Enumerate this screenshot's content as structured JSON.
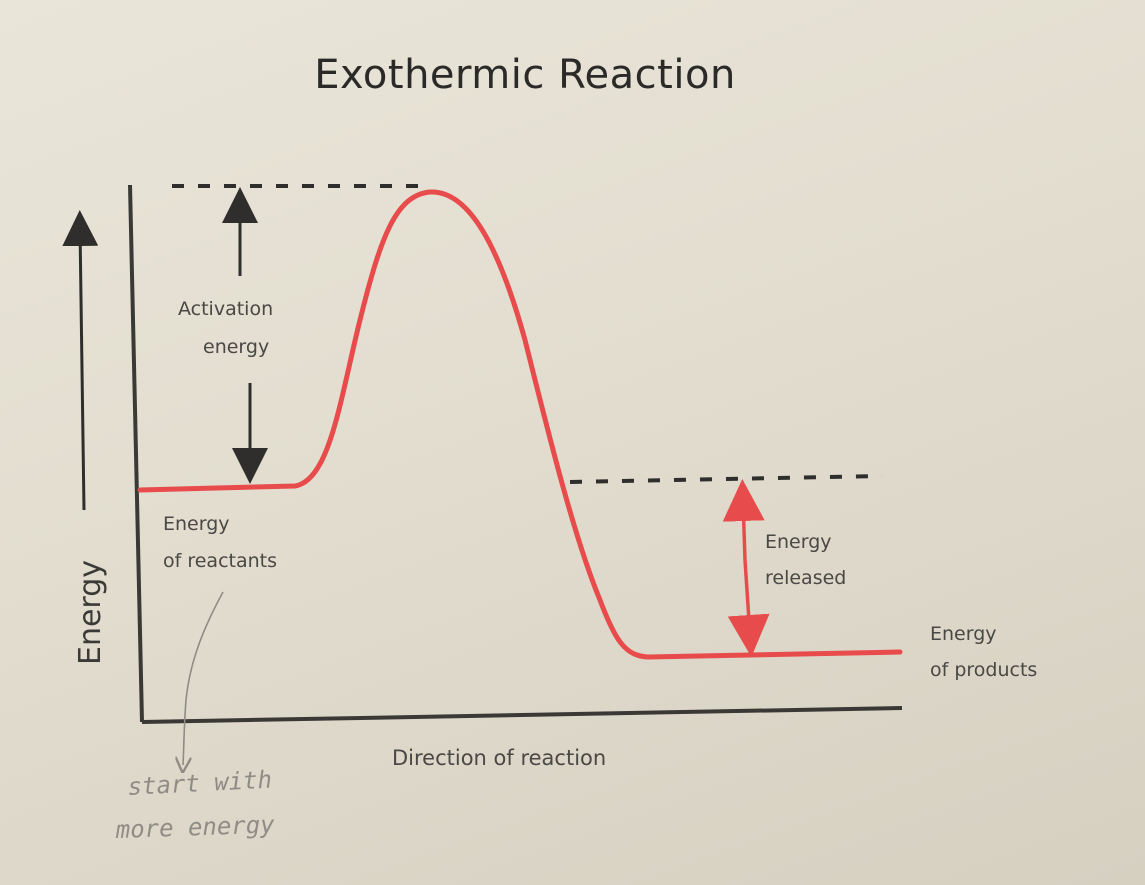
{
  "diagram": {
    "title": "Exothermic Reaction",
    "y_axis_label": "Energy",
    "x_axis_label": "Direction of reaction",
    "activation_energy": [
      "Activation",
      "energy"
    ],
    "reactants_label": [
      "Energy",
      "of reactants"
    ],
    "energy_released": [
      "Energy",
      "released"
    ],
    "products_label": [
      "Energy",
      "of products"
    ],
    "handwritten_note": [
      "start with",
      "more energy"
    ],
    "colors": {
      "curve": "#e84b4b",
      "released_arrow": "#e84b4b",
      "axes": "#3a3936",
      "text": "#4a4845",
      "handwriting": "#8f8c86"
    }
  }
}
